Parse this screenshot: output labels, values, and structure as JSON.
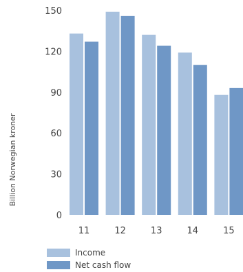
{
  "chart_data": {
    "type": "bar",
    "categories": [
      "11",
      "12",
      "13",
      "14",
      "15"
    ],
    "series": [
      {
        "name": "Income",
        "values": [
          133,
          149,
          132,
          119,
          88
        ],
        "color": "#a8c1de"
      },
      {
        "name": "Net cash flow",
        "values": [
          127,
          146,
          124,
          110,
          93
        ],
        "color": "#6f97c6"
      }
    ],
    "ylabel": "Billion Norwegian kroner",
    "ylim": [
      0,
      150
    ],
    "yticks": [
      0,
      30,
      60,
      90,
      120,
      150
    ],
    "grid": false,
    "legend_position": "bottom-left"
  }
}
